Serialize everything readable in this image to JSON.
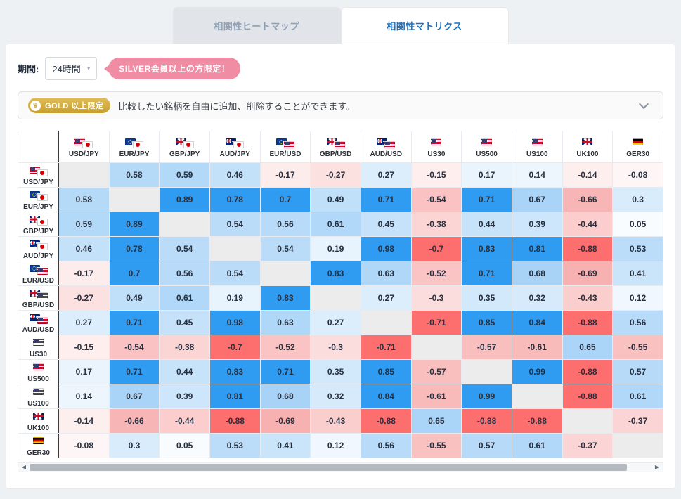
{
  "tabs": {
    "heatmap": "相関性ヒートマップ",
    "matrix": "相関性マトリクス"
  },
  "period": {
    "label": "期間:",
    "value": "24時間",
    "silver_badge": "SILVER会員以上の方限定！"
  },
  "gold_banner": {
    "badge_label": "GOLD 以上限定",
    "description": "比較したい銘柄を自由に追加、削除することができます。"
  },
  "icons": {
    "crown": "♛",
    "dropdown_caret": "▾",
    "scroll_left": "◀",
    "scroll_right": "▶"
  },
  "colors": {
    "positive_strong": "#2f9bf1",
    "negative_strong": "#fd6e6e",
    "positive_light_max": "#a5d2f7",
    "negative_light_max": "#f8b0b0",
    "diagonal": "#ececec",
    "accent_blue": "#1b72c4",
    "badge_pink": "#f08ca4",
    "badge_gold": "#cfa43a"
  },
  "chart_data": {
    "type": "heatmap",
    "title": "相関性マトリクス",
    "period": "24時間",
    "strong_threshold": 0.7,
    "symbols": [
      "USD/JPY",
      "EUR/JPY",
      "GBP/JPY",
      "AUD/JPY",
      "EUR/USD",
      "GBP/USD",
      "AUD/USD",
      "US30",
      "US500",
      "US100",
      "UK100",
      "GER30"
    ],
    "flags": [
      [
        "us",
        "jp"
      ],
      [
        "eu",
        "jp"
      ],
      [
        "gb",
        "jp"
      ],
      [
        "au",
        "jp"
      ],
      [
        "eu",
        "us"
      ],
      [
        "gb",
        "us"
      ],
      [
        "au",
        "us"
      ],
      [
        "us"
      ],
      [
        "us"
      ],
      [
        "us"
      ],
      [
        "gb"
      ],
      [
        "de"
      ]
    ],
    "matrix": [
      [
        "",
        "0.58",
        "0.59",
        "0.46",
        "-0.17",
        "-0.27",
        "0.27",
        "-0.15",
        "0.17",
        "0.14",
        "-0.14",
        "-0.08"
      ],
      [
        "0.58",
        "",
        "0.89",
        "0.78",
        "0.7",
        "0.49",
        "0.71",
        "-0.54",
        "0.71",
        "0.67",
        "-0.66",
        "0.3"
      ],
      [
        "0.59",
        "0.89",
        "",
        "0.54",
        "0.56",
        "0.61",
        "0.45",
        "-0.38",
        "0.44",
        "0.39",
        "-0.44",
        "0.05"
      ],
      [
        "0.46",
        "0.78",
        "0.54",
        "",
        "0.54",
        "0.19",
        "0.98",
        "-0.7",
        "0.83",
        "0.81",
        "-0.88",
        "0.53"
      ],
      [
        "-0.17",
        "0.7",
        "0.56",
        "0.54",
        "",
        "0.83",
        "0.63",
        "-0.52",
        "0.71",
        "0.68",
        "-0.69",
        "0.41"
      ],
      [
        "-0.27",
        "0.49",
        "0.61",
        "0.19",
        "0.83",
        "",
        "0.27",
        "-0.3",
        "0.35",
        "0.32",
        "-0.43",
        "0.12"
      ],
      [
        "0.27",
        "0.71",
        "0.45",
        "0.98",
        "0.63",
        "0.27",
        "",
        "-0.71",
        "0.85",
        "0.84",
        "-0.88",
        "0.56"
      ],
      [
        "-0.15",
        "-0.54",
        "-0.38",
        "-0.7",
        "-0.52",
        "-0.3",
        "-0.71",
        "",
        "-0.57",
        "-0.61",
        "0.65",
        "-0.55"
      ],
      [
        "0.17",
        "0.71",
        "0.44",
        "0.83",
        "0.71",
        "0.35",
        "0.85",
        "-0.57",
        "",
        "0.99",
        "-0.88",
        "0.57"
      ],
      [
        "0.14",
        "0.67",
        "0.39",
        "0.81",
        "0.68",
        "0.32",
        "0.84",
        "-0.61",
        "0.99",
        "",
        "-0.88",
        "0.61"
      ],
      [
        "-0.14",
        "-0.66",
        "-0.44",
        "-0.88",
        "-0.69",
        "-0.43",
        "-0.88",
        "0.65",
        "-0.88",
        "-0.88",
        "",
        "-0.37"
      ],
      [
        "-0.08",
        "0.3",
        "0.05",
        "0.53",
        "0.41",
        "0.12",
        "0.56",
        "-0.55",
        "0.57",
        "0.61",
        "-0.37",
        ""
      ]
    ]
  }
}
